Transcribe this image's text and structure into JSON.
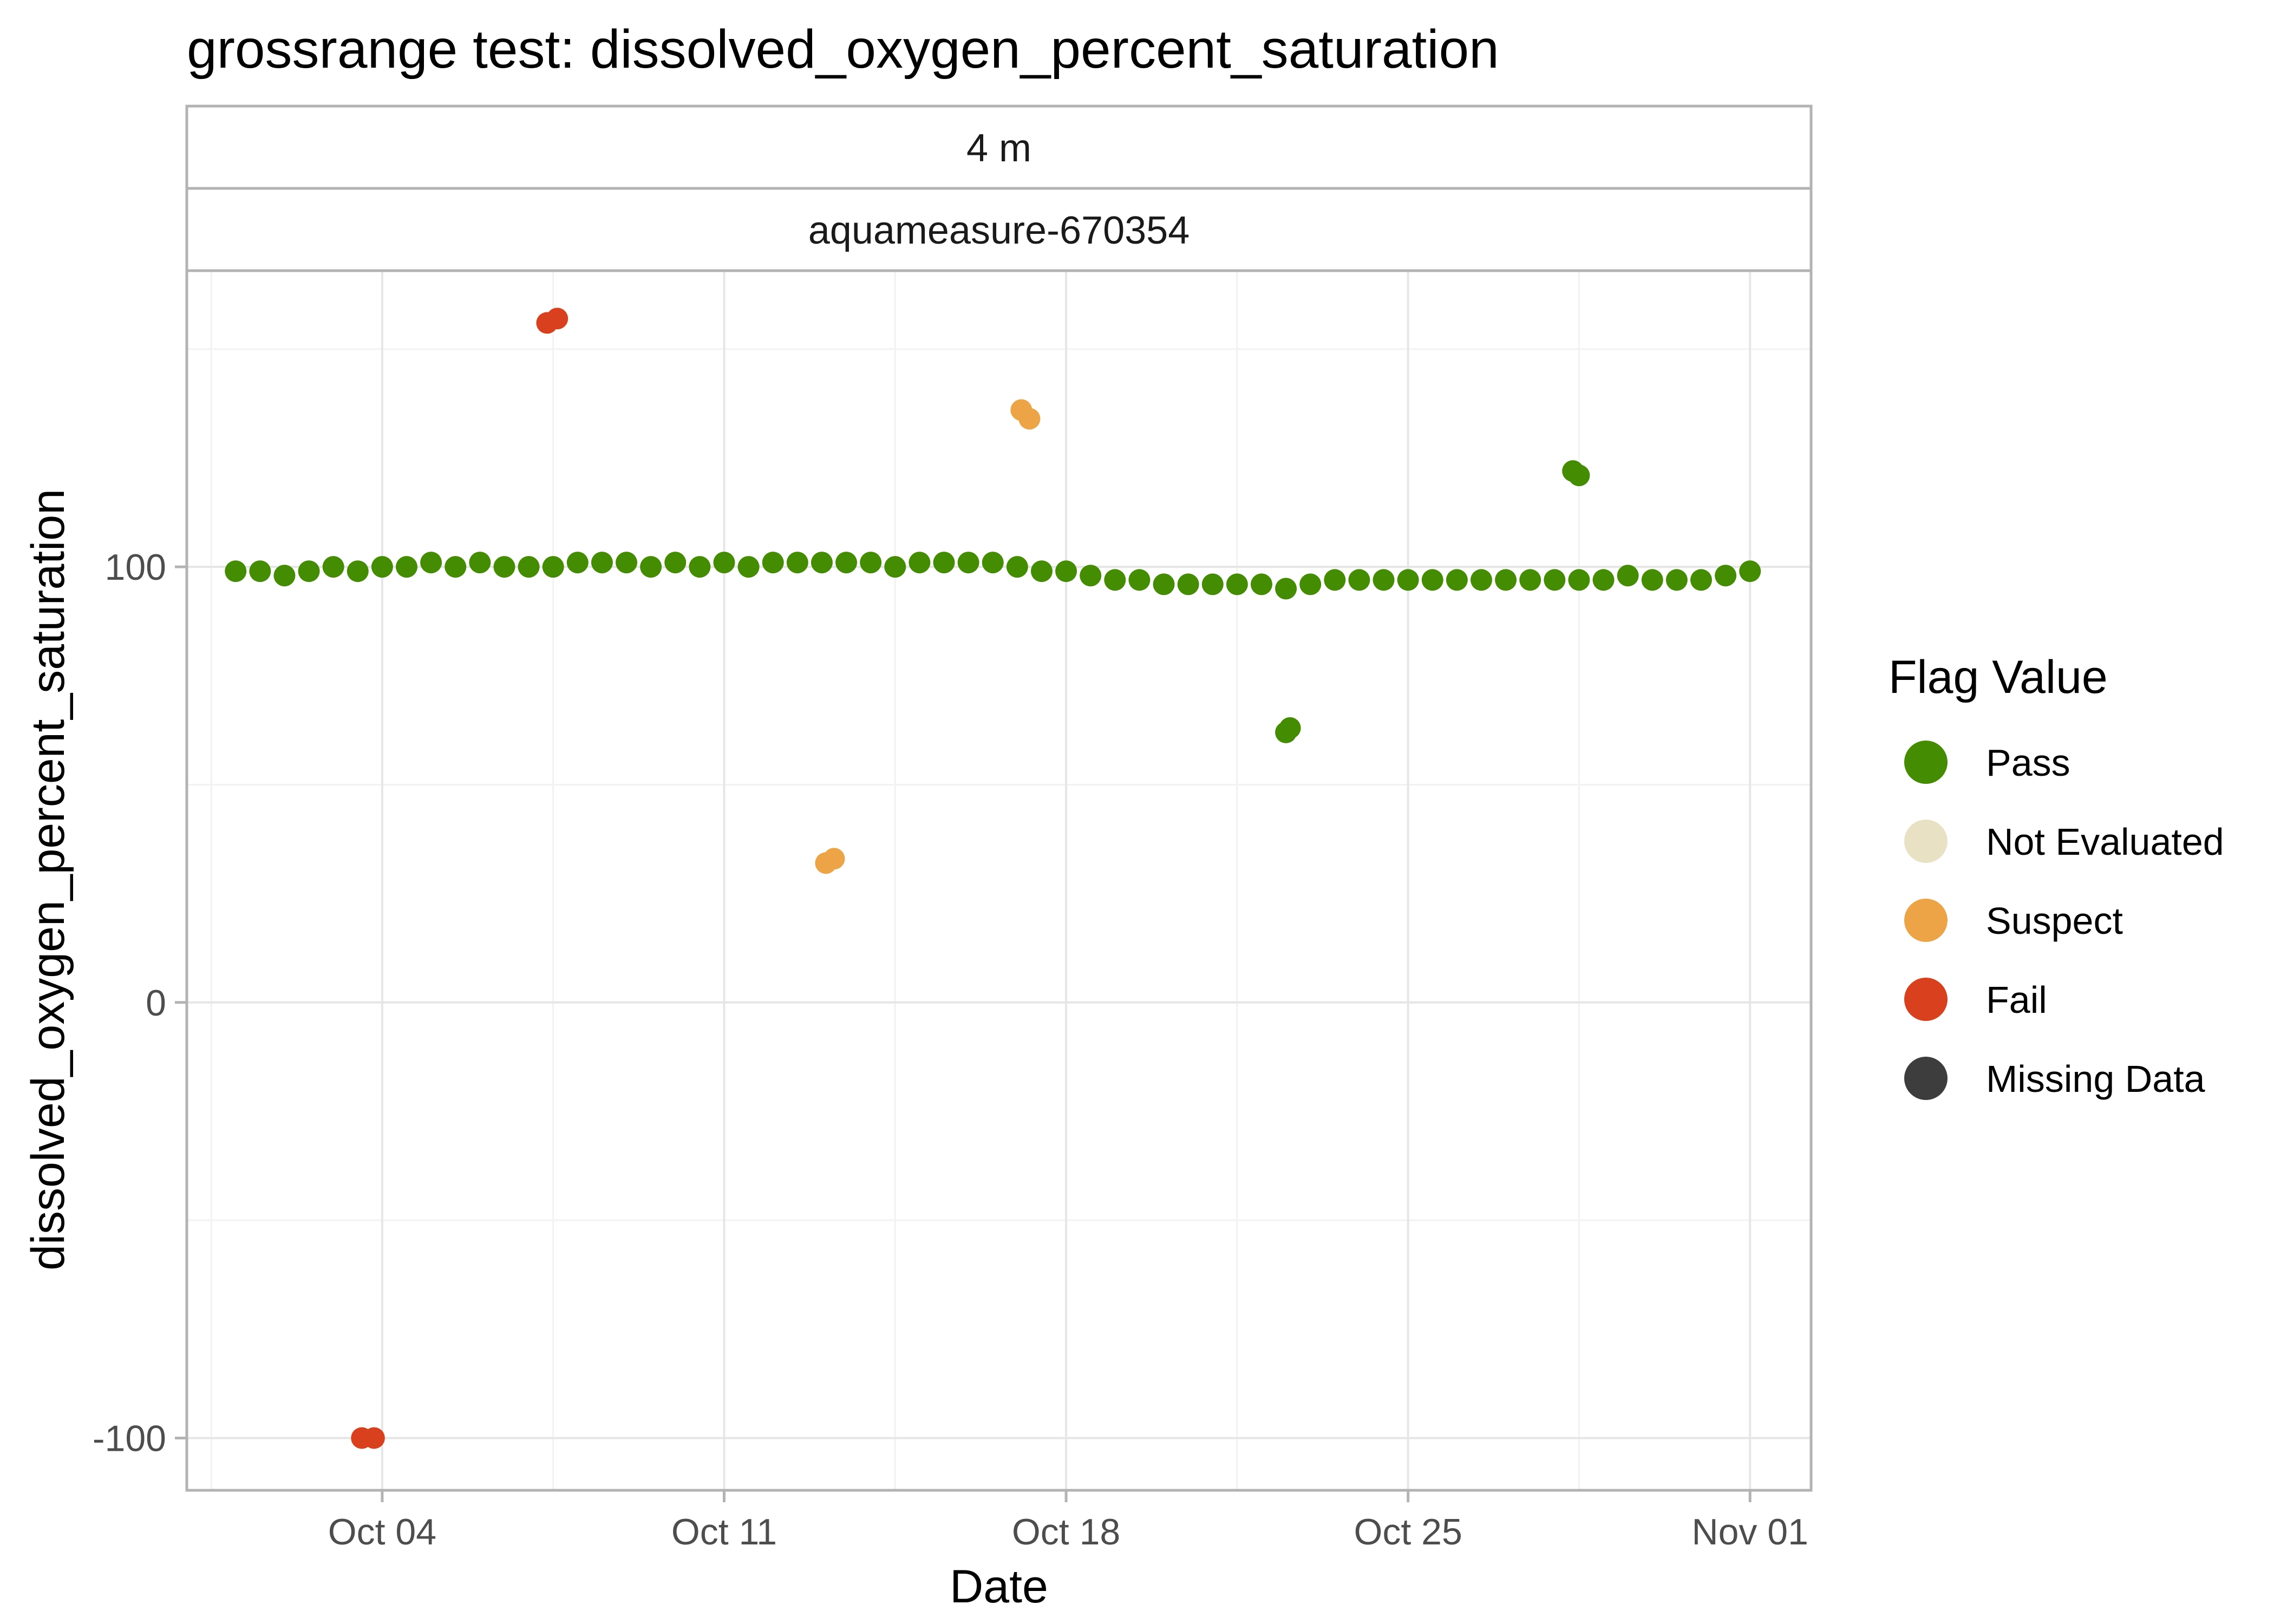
{
  "chart_data": {
    "type": "scatter",
    "title": "grossrange test: dissolved_oxygen_percent_saturation",
    "facet_labels": [
      "4 m",
      "aquameasure-670354"
    ],
    "xlabel": "Date",
    "ylabel": "dissolved_oxygen_percent_saturation",
    "x_ticks": [
      {
        "date": "2023-10-04",
        "label": "Oct 04"
      },
      {
        "date": "2023-10-11",
        "label": "Oct 11"
      },
      {
        "date": "2023-10-18",
        "label": "Oct 18"
      },
      {
        "date": "2023-10-25",
        "label": "Oct 25"
      },
      {
        "date": "2023-11-01",
        "label": "Nov 01"
      }
    ],
    "y_ticks": [
      -100,
      0,
      100
    ],
    "xlim": [
      "2023-09-30T00:00",
      "2023-11-02T06:00"
    ],
    "ylim": [
      -112,
      168
    ],
    "grid": true,
    "legend": {
      "title": "Flag Value",
      "position": "right",
      "entries": [
        {
          "label": "Pass",
          "color": "#448c02"
        },
        {
          "label": "Not Evaluated",
          "color": "#e8e1c3"
        },
        {
          "label": "Suspect",
          "color": "#eca446"
        },
        {
          "label": "Fail",
          "color": "#d9411e"
        },
        {
          "label": "Missing Data",
          "color": "#3d3d3d"
        }
      ]
    },
    "series": [
      {
        "name": "Pass",
        "points": [
          [
            "2023-10-01T00:00",
            99
          ],
          [
            "2023-10-01T12:00",
            99
          ],
          [
            "2023-10-02T00:00",
            98
          ],
          [
            "2023-10-02T12:00",
            99
          ],
          [
            "2023-10-03T00:00",
            100
          ],
          [
            "2023-10-03T12:00",
            99
          ],
          [
            "2023-10-04T00:00",
            100
          ],
          [
            "2023-10-04T12:00",
            100
          ],
          [
            "2023-10-05T00:00",
            101
          ],
          [
            "2023-10-05T12:00",
            100
          ],
          [
            "2023-10-06T00:00",
            101
          ],
          [
            "2023-10-06T12:00",
            100
          ],
          [
            "2023-10-07T00:00",
            100
          ],
          [
            "2023-10-07T12:00",
            100
          ],
          [
            "2023-10-08T00:00",
            101
          ],
          [
            "2023-10-08T12:00",
            101
          ],
          [
            "2023-10-09T00:00",
            101
          ],
          [
            "2023-10-09T12:00",
            100
          ],
          [
            "2023-10-10T00:00",
            101
          ],
          [
            "2023-10-10T12:00",
            100
          ],
          [
            "2023-10-11T00:00",
            101
          ],
          [
            "2023-10-11T12:00",
            100
          ],
          [
            "2023-10-12T00:00",
            101
          ],
          [
            "2023-10-12T12:00",
            101
          ],
          [
            "2023-10-13T00:00",
            101
          ],
          [
            "2023-10-13T12:00",
            101
          ],
          [
            "2023-10-14T00:00",
            101
          ],
          [
            "2023-10-14T12:00",
            100
          ],
          [
            "2023-10-15T00:00",
            101
          ],
          [
            "2023-10-15T12:00",
            101
          ],
          [
            "2023-10-16T00:00",
            101
          ],
          [
            "2023-10-16T12:00",
            101
          ],
          [
            "2023-10-17T00:00",
            100
          ],
          [
            "2023-10-17T12:00",
            99
          ],
          [
            "2023-10-18T00:00",
            99
          ],
          [
            "2023-10-18T12:00",
            98
          ],
          [
            "2023-10-19T00:00",
            97
          ],
          [
            "2023-10-19T12:00",
            97
          ],
          [
            "2023-10-20T00:00",
            96
          ],
          [
            "2023-10-20T12:00",
            96
          ],
          [
            "2023-10-21T00:00",
            96
          ],
          [
            "2023-10-21T12:00",
            96
          ],
          [
            "2023-10-22T00:00",
            96
          ],
          [
            "2023-10-22T12:00",
            95
          ],
          [
            "2023-10-23T00:00",
            96
          ],
          [
            "2023-10-23T12:00",
            97
          ],
          [
            "2023-10-24T00:00",
            97
          ],
          [
            "2023-10-24T12:00",
            97
          ],
          [
            "2023-10-25T00:00",
            97
          ],
          [
            "2023-10-25T12:00",
            97
          ],
          [
            "2023-10-26T00:00",
            97
          ],
          [
            "2023-10-26T12:00",
            97
          ],
          [
            "2023-10-27T00:00",
            97
          ],
          [
            "2023-10-27T12:00",
            97
          ],
          [
            "2023-10-28T00:00",
            97
          ],
          [
            "2023-10-28T12:00",
            97
          ],
          [
            "2023-10-29T00:00",
            97
          ],
          [
            "2023-10-29T12:00",
            98
          ],
          [
            "2023-10-30T00:00",
            97
          ],
          [
            "2023-10-30T12:00",
            97
          ],
          [
            "2023-10-31T00:00",
            97
          ],
          [
            "2023-10-31T12:00",
            98
          ],
          [
            "2023-11-01T00:00",
            99
          ],
          [
            "2023-10-22T12:00",
            62
          ],
          [
            "2023-10-22T14:00",
            63
          ],
          [
            "2023-10-28T09:00",
            122
          ],
          [
            "2023-10-28T12:00",
            121
          ]
        ]
      },
      {
        "name": "Suspect",
        "points": [
          [
            "2023-10-13T02:00",
            32
          ],
          [
            "2023-10-13T06:00",
            33
          ],
          [
            "2023-10-17T02:00",
            136
          ],
          [
            "2023-10-17T06:00",
            134
          ]
        ]
      },
      {
        "name": "Fail",
        "points": [
          [
            "2023-10-03T14:00",
            -100
          ],
          [
            "2023-10-03T20:00",
            -100
          ],
          [
            "2023-10-07T09:00",
            156
          ],
          [
            "2023-10-07T14:00",
            157
          ]
        ]
      }
    ]
  }
}
